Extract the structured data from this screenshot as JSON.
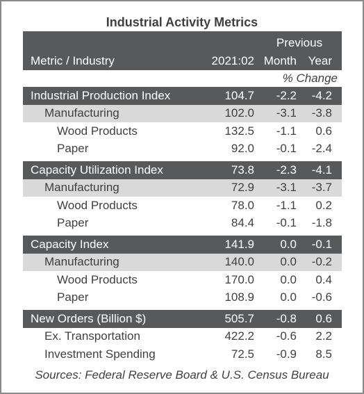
{
  "header": {
    "title": "Industrial Activity Metrics",
    "previous": "Previous",
    "columns": [
      "Metric / Industry",
      "2021:02",
      "Month",
      "Year"
    ],
    "change": "% Change"
  },
  "groups": [
    {
      "label": "Industrial Production Index",
      "value": "104.7",
      "month": "-2.2",
      "year": "-4.2",
      "rows": [
        {
          "label": "Manufacturing",
          "value": "102.0",
          "month": "-3.1",
          "year": "-3.8",
          "rows": [
            {
              "label": "Wood Products",
              "value": "132.5",
              "month": "-1.1",
              "year": "0.6"
            },
            {
              "label": "Paper",
              "value": "92.0",
              "month": "-0.1",
              "year": "-2.4"
            }
          ]
        }
      ]
    },
    {
      "label": "Capacity Utilization Index",
      "value": "73.8",
      "month": "-2.3",
      "year": "-4.1",
      "rows": [
        {
          "label": "Manufacturing",
          "value": "72.9",
          "month": "-3.1",
          "year": "-3.7",
          "rows": [
            {
              "label": "Wood Products",
              "value": "78.0",
              "month": "-1.1",
              "year": "0.2"
            },
            {
              "label": "Paper",
              "value": "84.4",
              "month": "-0.1",
              "year": "-1.8"
            }
          ]
        }
      ]
    },
    {
      "label": "Capacity Index",
      "value": "141.9",
      "month": "0.0",
      "year": "-0.1",
      "rows": [
        {
          "label": "Manufacturing",
          "value": "140.0",
          "month": "0.0",
          "year": "-0.2",
          "rows": [
            {
              "label": "Wood Products",
              "value": "170.0",
              "month": "0.0",
              "year": "0.4"
            },
            {
              "label": "Paper",
              "value": "108.9",
              "month": "0.0",
              "year": "-0.6"
            }
          ]
        }
      ]
    },
    {
      "label": "New Orders (Billion $)",
      "value": "505.7",
      "month": "-0.8",
      "year": "0.6",
      "rows": [
        {
          "label": "Ex. Transportation",
          "value": "422.2",
          "month": "-0.6",
          "year": "2.2"
        },
        {
          "label": "Investment Spending",
          "value": "72.5",
          "month": "-0.9",
          "year": "8.5"
        }
      ]
    }
  ],
  "footer": {
    "sources": "Sources: Federal Reserve Board & U.S. Census Bureau"
  }
}
